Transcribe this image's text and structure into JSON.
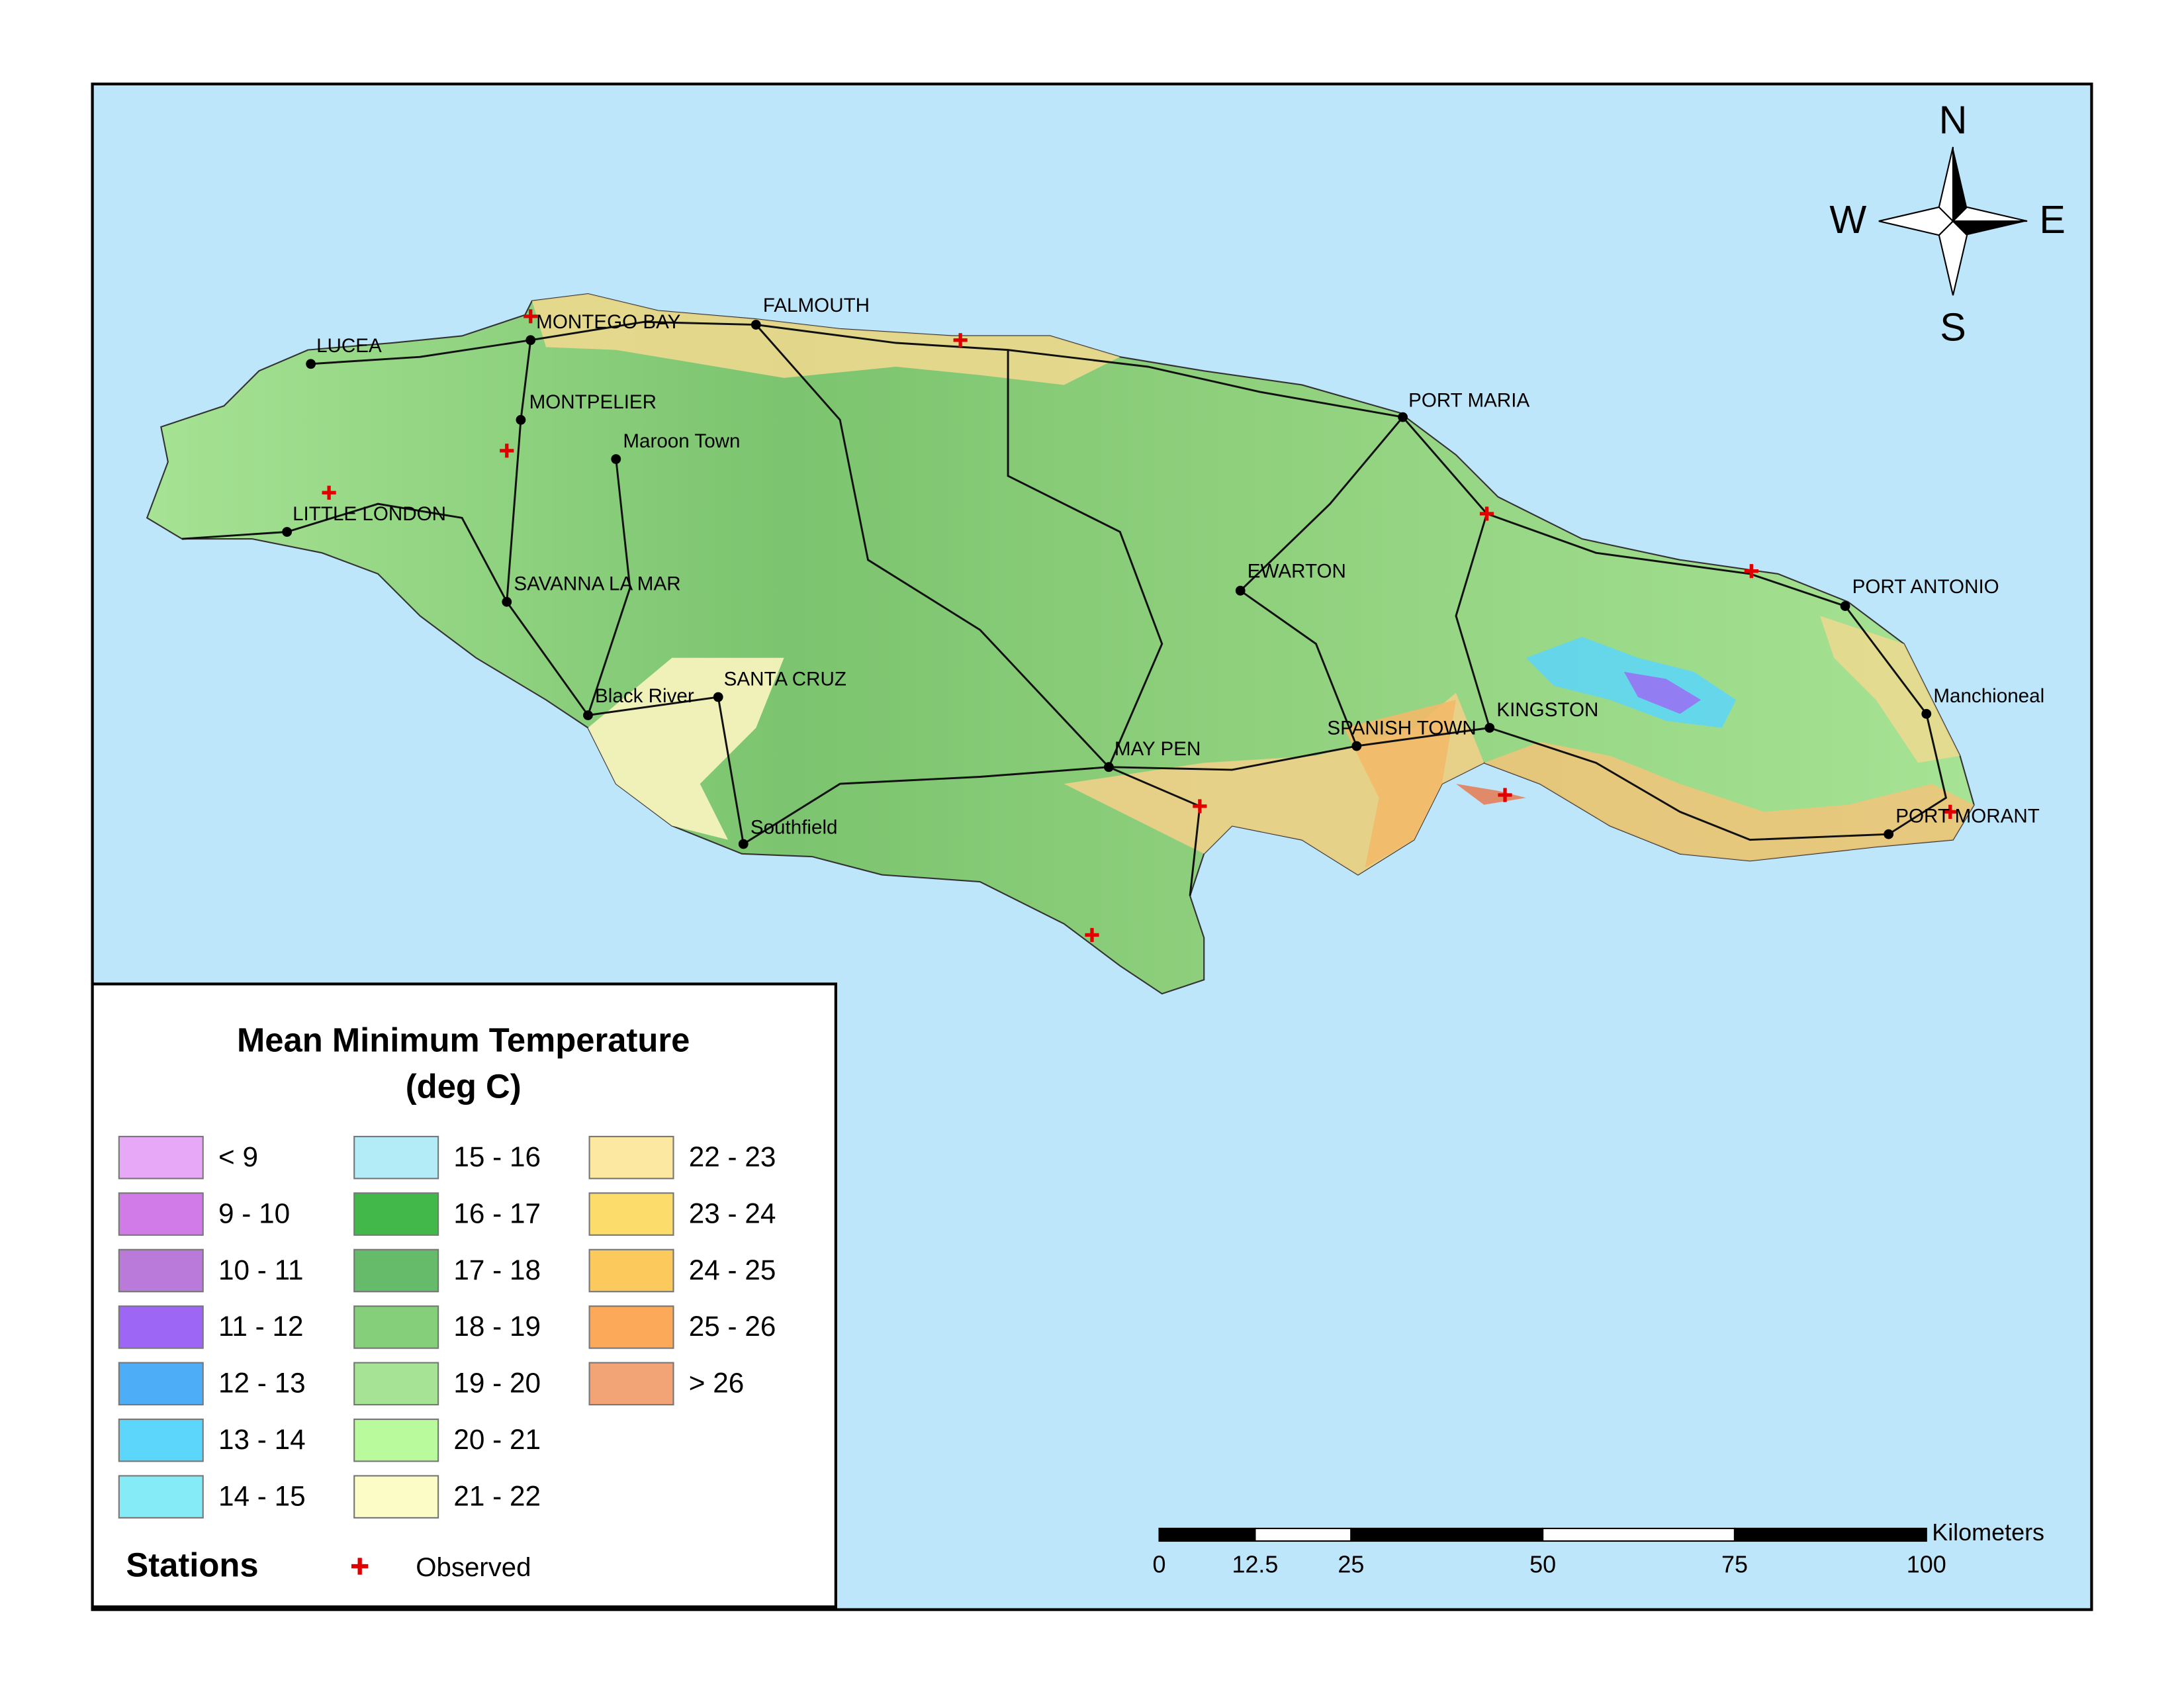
{
  "map": {
    "places": [
      "MONTEGO BAY",
      "FALMOUTH",
      "LUCEA",
      "MONTPELIER",
      "Maroon Town",
      "PORT MARIA",
      "LITTLE LONDON",
      "SAVANNA LA MAR",
      "EWARTON",
      "PORT ANTONIO",
      "Black River",
      "SANTA CRUZ",
      "KINGSTON",
      "Manchioneal",
      "MAY PEN",
      "SPANISH TOWN",
      "Southfield",
      "PORT MORANT"
    ],
    "compass": {
      "north": "N",
      "south": "S",
      "west": "W",
      "east": "E"
    }
  },
  "legend": {
    "title": [
      "Mean Minimum Temperature",
      "(deg C)"
    ],
    "items": [
      {
        "label": "< 9",
        "color": "#e6a8f7"
      },
      {
        "label": "9 - 10",
        "color": "#d17be8"
      },
      {
        "label": "10 - 11",
        "color": "#b97ad9"
      },
      {
        "label": "11 - 12",
        "color": "#9e66f5"
      },
      {
        "label": "12 - 13",
        "color": "#4dadf7"
      },
      {
        "label": "13 - 14",
        "color": "#5cd6fa"
      },
      {
        "label": "14 - 15",
        "color": "#85ecf7"
      },
      {
        "label": "15 - 16",
        "color": "#b3ecf7"
      },
      {
        "label": "16 - 17",
        "color": "#42b84a"
      },
      {
        "label": "17 - 18",
        "color": "#66bb6a"
      },
      {
        "label": "18 - 19",
        "color": "#85cf7a"
      },
      {
        "label": "19 - 20",
        "color": "#a6e394"
      },
      {
        "label": "20 - 21",
        "color": "#b8fa9c"
      },
      {
        "label": "21 - 22",
        "color": "#fcfcc7"
      },
      {
        "label": "22 - 23",
        "color": "#fce8a0"
      },
      {
        "label": "23 - 24",
        "color": "#fcdc6a"
      },
      {
        "label": "24 - 25",
        "color": "#fcc95c"
      },
      {
        "label": "25 - 26",
        "color": "#fcaa5a"
      },
      {
        "label": "> 26",
        "color": "#f2a476"
      }
    ],
    "stations": {
      "title": "Stations",
      "label": "Observed",
      "color": "#e00000"
    }
  },
  "scale_bar": {
    "unit": "Kilometers",
    "ticks": [
      0,
      12.5,
      25,
      50,
      75,
      100
    ]
  }
}
